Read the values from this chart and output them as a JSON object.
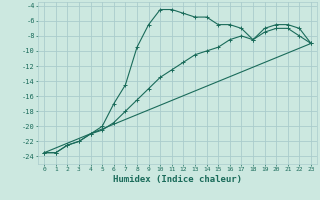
{
  "xlabel": "Humidex (Indice chaleur)",
  "ylabel": "",
  "bg_color": "#cce8e0",
  "grid_color": "#aacccc",
  "line_color": "#1a6b5a",
  "xlim": [
    -0.5,
    23.5
  ],
  "ylim": [
    -25,
    -3.5
  ],
  "xticks": [
    0,
    1,
    2,
    3,
    4,
    5,
    6,
    7,
    8,
    9,
    10,
    11,
    12,
    13,
    14,
    15,
    16,
    17,
    18,
    19,
    20,
    21,
    22,
    23
  ],
  "yticks": [
    -24,
    -22,
    -20,
    -18,
    -16,
    -14,
    -12,
    -10,
    -8,
    -6,
    -4
  ],
  "series1_x": [
    0,
    1,
    2,
    3,
    4,
    5,
    6,
    7,
    8,
    9,
    10,
    11,
    12,
    13,
    14,
    15,
    16,
    17,
    18,
    19,
    20,
    21,
    22,
    23
  ],
  "series1_y": [
    -23.5,
    -23.5,
    -22.5,
    -22.0,
    -21.0,
    -20.0,
    -17.0,
    -14.5,
    -9.5,
    -6.5,
    -4.5,
    -4.5,
    -5.0,
    -5.5,
    -5.5,
    -6.5,
    -6.5,
    -7.0,
    -8.5,
    -7.0,
    -6.5,
    -6.5,
    -7.0,
    -9.0
  ],
  "series2_x": [
    0,
    1,
    2,
    3,
    4,
    5,
    6,
    7,
    8,
    9,
    10,
    11,
    12,
    13,
    14,
    15,
    16,
    17,
    18,
    19,
    20,
    21,
    22,
    23
  ],
  "series2_y": [
    -23.5,
    -23.5,
    -22.5,
    -22.0,
    -21.0,
    -20.5,
    -19.5,
    -18.0,
    -16.5,
    -15.0,
    -13.5,
    -12.5,
    -11.5,
    -10.5,
    -10.0,
    -9.5,
    -8.5,
    -8.0,
    -8.5,
    -7.5,
    -7.0,
    -7.0,
    -8.0,
    -9.0
  ],
  "series3_x": [
    0,
    23
  ],
  "series3_y": [
    -23.5,
    -9.0
  ]
}
